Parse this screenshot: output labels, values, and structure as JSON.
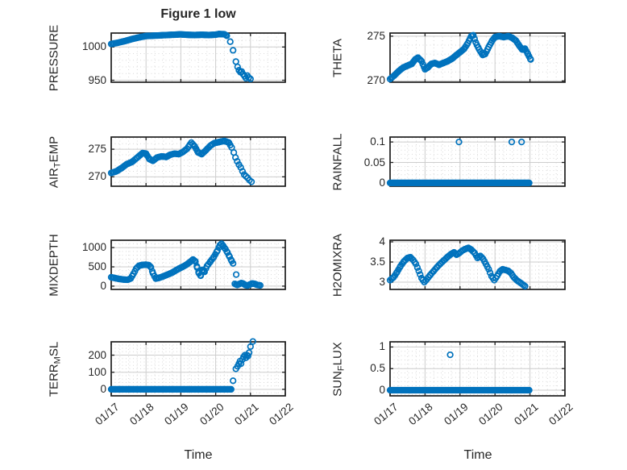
{
  "title": "Figure 1 low",
  "xlabel": "Time",
  "colors": {
    "marker": "#0072BD",
    "axes": "#1f1f1f",
    "grid_major": "#cdcdcd",
    "grid_minor": "#d9d9d9",
    "text": "#262626"
  },
  "x_axis": {
    "tick_labels": [
      "01/17",
      "01/18",
      "01/19",
      "01/20",
      "01/21",
      "01/22"
    ],
    "xlim_days": [
      0,
      5
    ],
    "minor_step": 0.25
  },
  "chart_data": [
    {
      "type": "scatter",
      "name": "PRESSURE",
      "ylabel_parts": [
        {
          "text": "PRESSURE",
          "sub": false
        }
      ],
      "yticks": [
        950,
        1000
      ],
      "ylim": [
        947,
        1021
      ],
      "yminor": 10,
      "step": 0.04,
      "segments": [
        [
          [
            0,
            1004.5
          ],
          [
            0.2,
            1006.5
          ],
          [
            0.4,
            1009
          ],
          [
            0.6,
            1012
          ],
          [
            0.8,
            1014.5
          ],
          [
            1.0,
            1016.5
          ],
          [
            1.2,
            1017
          ],
          [
            1.4,
            1017.5
          ],
          [
            1.6,
            1018
          ],
          [
            1.8,
            1018.5
          ],
          [
            2.0,
            1019
          ],
          [
            2.2,
            1018.3
          ],
          [
            2.4,
            1018
          ],
          [
            2.6,
            1018.4
          ],
          [
            2.8,
            1018
          ],
          [
            3.0,
            1018.6
          ],
          [
            3.1,
            1019.5
          ],
          [
            3.25,
            1019.2
          ],
          [
            3.32,
            1017
          ]
        ]
      ],
      "points": [
        [
          3.42,
          1008
        ],
        [
          3.5,
          995
        ],
        [
          3.58,
          978
        ],
        [
          3.63,
          970
        ],
        [
          3.67,
          965
        ],
        [
          3.71,
          962
        ],
        [
          3.75,
          963
        ],
        [
          3.79,
          959
        ],
        [
          3.83,
          956
        ],
        [
          3.87,
          953
        ],
        [
          3.91,
          957
        ],
        [
          3.95,
          954
        ],
        [
          4.0,
          952
        ]
      ]
    },
    {
      "type": "scatter",
      "name": "THETA",
      "ylabel_parts": [
        {
          "text": "THETA",
          "sub": false
        }
      ],
      "yticks": [
        270,
        275
      ],
      "ylim": [
        269.85,
        275.35
      ],
      "yminor": 1,
      "step": 0.035,
      "segments": [
        [
          [
            0,
            270.2
          ],
          [
            0.12,
            270.6
          ],
          [
            0.25,
            271.1
          ],
          [
            0.38,
            271.5
          ],
          [
            0.5,
            271.7
          ],
          [
            0.62,
            271.9
          ],
          [
            0.72,
            272.4
          ],
          [
            0.8,
            272.6
          ],
          [
            0.9,
            272.2
          ],
          [
            1.0,
            271.3
          ],
          [
            1.08,
            271.5
          ],
          [
            1.18,
            271.9
          ],
          [
            1.28,
            272.0
          ],
          [
            1.4,
            271.8
          ],
          [
            1.52,
            272.0
          ],
          [
            1.65,
            272.2
          ],
          [
            1.78,
            272.5
          ],
          [
            1.9,
            272.9
          ],
          [
            2.0,
            273.2
          ],
          [
            2.12,
            273.6
          ],
          [
            2.22,
            274.2
          ],
          [
            2.32,
            275.0
          ],
          [
            2.38,
            275.1
          ],
          [
            2.45,
            274.3
          ],
          [
            2.55,
            273.5
          ],
          [
            2.65,
            272.9
          ],
          [
            2.72,
            273.0
          ],
          [
            2.82,
            273.8
          ],
          [
            2.92,
            274.5
          ],
          [
            3.0,
            274.9
          ],
          [
            3.12,
            275.0
          ],
          [
            3.25,
            274.9
          ],
          [
            3.38,
            275.0
          ],
          [
            3.5,
            274.8
          ],
          [
            3.6,
            274.5
          ],
          [
            3.7,
            273.9
          ],
          [
            3.78,
            273.5
          ],
          [
            3.86,
            273.6
          ],
          [
            3.94,
            273.0
          ],
          [
            4.02,
            272.4
          ]
        ]
      ],
      "points": []
    },
    {
      "type": "scatter",
      "name": "AIR_TEMP",
      "ylabel_parts": [
        {
          "text": "AIR",
          "sub": false
        },
        {
          "text": "T",
          "sub": true
        },
        {
          "text": "EMP",
          "sub": false
        }
      ],
      "yticks": [
        270,
        275
      ],
      "ylim": [
        268.3,
        277.2
      ],
      "yminor": 1,
      "step": 0.04,
      "segments": [
        [
          [
            0,
            270.7
          ],
          [
            0.15,
            271.0
          ],
          [
            0.3,
            271.6
          ],
          [
            0.45,
            272.3
          ],
          [
            0.6,
            272.7
          ],
          [
            0.75,
            273.5
          ],
          [
            0.9,
            274.3
          ],
          [
            1.0,
            274.2
          ],
          [
            1.1,
            273.2
          ],
          [
            1.2,
            272.9
          ],
          [
            1.32,
            273.5
          ],
          [
            1.45,
            273.7
          ],
          [
            1.58,
            273.6
          ],
          [
            1.7,
            274.0
          ],
          [
            1.82,
            274.2
          ],
          [
            1.94,
            274.1
          ],
          [
            2.06,
            274.5
          ],
          [
            2.18,
            275.1
          ],
          [
            2.3,
            276.2
          ],
          [
            2.4,
            275.5
          ],
          [
            2.5,
            274.4
          ],
          [
            2.6,
            274.1
          ],
          [
            2.72,
            274.8
          ],
          [
            2.84,
            275.6
          ],
          [
            2.96,
            276.1
          ],
          [
            3.1,
            276.3
          ],
          [
            3.25,
            276.5
          ],
          [
            3.38,
            276.2
          ],
          [
            3.46,
            275.3
          ]
        ]
      ],
      "points": [
        [
          3.52,
          274.4
        ],
        [
          3.57,
          273.5
        ],
        [
          3.62,
          272.8
        ],
        [
          3.67,
          272.2
        ],
        [
          3.72,
          271.7
        ],
        [
          3.77,
          271.0
        ],
        [
          3.82,
          270.4
        ],
        [
          3.87,
          270.1
        ],
        [
          3.92,
          269.8
        ],
        [
          3.97,
          269.4
        ],
        [
          4.03,
          269.1
        ]
      ]
    },
    {
      "type": "scatter",
      "name": "RAINFALL",
      "ylabel_parts": [
        {
          "text": "RAINFALL",
          "sub": false
        }
      ],
      "yticks": [
        0,
        0.05,
        0.1
      ],
      "ylim": [
        -0.008,
        0.112
      ],
      "yminor": 0.01,
      "step": 0.04,
      "runs": [
        {
          "x0": 0,
          "x1": 4.0,
          "step": 0.028,
          "y": 0
        }
      ],
      "points": [
        [
          1.97,
          0.1
        ],
        [
          3.48,
          0.1
        ],
        [
          3.76,
          0.1
        ]
      ]
    },
    {
      "type": "scatter",
      "name": "MIXDEPTH",
      "ylabel_parts": [
        {
          "text": "MIXDEPTH",
          "sub": false
        }
      ],
      "yticks": [
        0,
        500,
        1000
      ],
      "ylim": [
        -85,
        1190
      ],
      "yminor": 100,
      "step": 0.04,
      "segments": [
        [
          [
            0,
            230
          ],
          [
            0.12,
            205
          ],
          [
            0.24,
            185
          ],
          [
            0.36,
            170
          ],
          [
            0.48,
            165
          ],
          [
            0.56,
            200
          ],
          [
            0.64,
            320
          ],
          [
            0.72,
            460
          ],
          [
            0.8,
            530
          ],
          [
            0.9,
            550
          ],
          [
            1.0,
            555
          ],
          [
            1.08,
            545
          ],
          [
            1.14,
            490
          ],
          [
            1.2,
            330
          ],
          [
            1.28,
            195
          ],
          [
            1.38,
            215
          ],
          [
            1.5,
            255
          ],
          [
            1.62,
            300
          ],
          [
            1.74,
            345
          ],
          [
            1.86,
            410
          ],
          [
            1.95,
            455
          ],
          [
            2.05,
            500
          ],
          [
            2.15,
            550
          ],
          [
            2.25,
            615
          ],
          [
            2.35,
            690
          ],
          [
            2.42,
            640
          ],
          [
            2.47,
            480
          ],
          [
            2.52,
            330
          ],
          [
            2.57,
            270
          ],
          [
            2.62,
            420
          ],
          [
            2.68,
            370
          ],
          [
            2.75,
            520
          ],
          [
            2.85,
            640
          ],
          [
            2.95,
            760
          ],
          [
            3.05,
            920
          ],
          [
            3.12,
            1060
          ],
          [
            3.17,
            1100
          ],
          [
            3.22,
            1040
          ],
          [
            3.28,
            960
          ],
          [
            3.34,
            870
          ],
          [
            3.4,
            760
          ],
          [
            3.46,
            650
          ],
          [
            3.5,
            590
          ]
        ],
        [
          [
            3.55,
            60
          ],
          [
            3.62,
            30
          ],
          [
            3.68,
            55
          ],
          [
            3.74,
            80
          ],
          [
            3.8,
            60
          ],
          [
            3.86,
            25
          ],
          [
            3.92,
            15
          ],
          [
            3.98,
            40
          ],
          [
            4.05,
            70
          ],
          [
            4.12,
            60
          ],
          [
            4.2,
            30
          ],
          [
            4.28,
            20
          ]
        ]
      ],
      "points": [
        [
          3.59,
          300
        ]
      ]
    },
    {
      "type": "scatter",
      "name": "H2OMIXRA",
      "ylabel_parts": [
        {
          "text": "H2OMIXRA",
          "sub": false
        }
      ],
      "yticks": [
        3,
        3.5,
        4
      ],
      "ylim": [
        2.82,
        4.04
      ],
      "yminor": 0.1,
      "step": 0.04,
      "segments": [
        [
          [
            0,
            3.05
          ],
          [
            0.1,
            3.12
          ],
          [
            0.2,
            3.25
          ],
          [
            0.3,
            3.4
          ],
          [
            0.4,
            3.52
          ],
          [
            0.5,
            3.6
          ],
          [
            0.58,
            3.62
          ],
          [
            0.66,
            3.55
          ],
          [
            0.74,
            3.45
          ],
          [
            0.82,
            3.28
          ],
          [
            0.9,
            3.1
          ],
          [
            0.98,
            3.0
          ],
          [
            1.06,
            3.08
          ],
          [
            1.15,
            3.18
          ],
          [
            1.25,
            3.28
          ],
          [
            1.35,
            3.38
          ],
          [
            1.45,
            3.47
          ],
          [
            1.55,
            3.55
          ],
          [
            1.65,
            3.63
          ],
          [
            1.75,
            3.7
          ],
          [
            1.83,
            3.74
          ],
          [
            1.9,
            3.68
          ],
          [
            1.98,
            3.72
          ],
          [
            2.06,
            3.78
          ],
          [
            2.15,
            3.82
          ],
          [
            2.24,
            3.85
          ],
          [
            2.33,
            3.8
          ],
          [
            2.42,
            3.72
          ],
          [
            2.5,
            3.6
          ],
          [
            2.58,
            3.65
          ],
          [
            2.66,
            3.58
          ],
          [
            2.74,
            3.45
          ],
          [
            2.82,
            3.32
          ],
          [
            2.9,
            3.15
          ],
          [
            2.98,
            3.05
          ],
          [
            3.06,
            3.15
          ],
          [
            3.14,
            3.27
          ],
          [
            3.22,
            3.32
          ],
          [
            3.3,
            3.3
          ],
          [
            3.38,
            3.28
          ],
          [
            3.46,
            3.22
          ],
          [
            3.54,
            3.12
          ],
          [
            3.62,
            3.05
          ],
          [
            3.7,
            3.0
          ],
          [
            3.78,
            2.95
          ],
          [
            3.86,
            2.9
          ]
        ]
      ],
      "points": []
    },
    {
      "type": "scatter",
      "name": "TERR_MSL",
      "ylabel_parts": [
        {
          "text": "TERR",
          "sub": false
        },
        {
          "text": "M",
          "sub": true
        },
        {
          "text": "SL",
          "sub": false
        }
      ],
      "yticks": [
        0,
        100,
        200
      ],
      "ylim": [
        -38,
        278
      ],
      "yminor": 20,
      "step": 0.04,
      "runs": [
        {
          "x0": 0,
          "x1": 3.47,
          "step": 0.028,
          "y": 0
        }
      ],
      "points": [
        [
          3.5,
          50
        ],
        [
          3.58,
          120
        ],
        [
          3.63,
          135
        ],
        [
          3.67,
          150
        ],
        [
          3.7,
          165
        ],
        [
          3.73,
          150
        ],
        [
          3.77,
          175
        ],
        [
          3.8,
          190
        ],
        [
          3.84,
          200
        ],
        [
          3.87,
          185
        ],
        [
          3.9,
          200
        ],
        [
          3.93,
          195
        ],
        [
          3.96,
          215
        ],
        [
          4.0,
          250
        ],
        [
          4.07,
          280
        ]
      ]
    },
    {
      "type": "scatter",
      "name": "SUN_FLUX",
      "ylabel_parts": [
        {
          "text": "SUN",
          "sub": false
        },
        {
          "text": "F",
          "sub": true
        },
        {
          "text": "LUX",
          "sub": false
        }
      ],
      "yticks": [
        0,
        0.5,
        1
      ],
      "ylim": [
        -0.13,
        1.12
      ],
      "yminor": 0.1,
      "step": 0.04,
      "runs": [
        {
          "x0": 0,
          "x1": 3.99,
          "step": 0.028,
          "y": 0
        }
      ],
      "points": [
        [
          1.72,
          0.82
        ]
      ]
    }
  ]
}
